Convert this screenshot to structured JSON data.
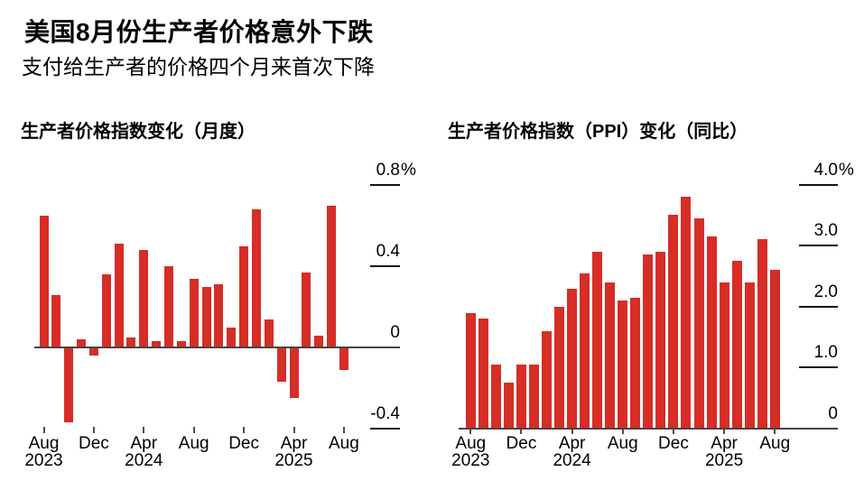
{
  "page": {
    "title": "美国8月份生产者价格意外下跌",
    "subtitle": "支付给生产者的价格四个月来首次下降"
  },
  "colors": {
    "bar_red": "#d62d26",
    "text": "#000000",
    "axis_line": "#454545",
    "tick_dash": "#141414"
  },
  "chart_data": [
    {
      "id": "ppi-mom",
      "type": "bar",
      "title": "生产者价格指数变化（月度）",
      "unit": "%",
      "bar_color": "#d62d26",
      "x": [
        "2023-08",
        "2023-09",
        "2023-10",
        "2023-11",
        "2023-12",
        "2024-01",
        "2024-02",
        "2024-03",
        "2024-04",
        "2024-05",
        "2024-06",
        "2024-07",
        "2024-08",
        "2024-09",
        "2024-10",
        "2024-11",
        "2024-12",
        "2025-01",
        "2025-02",
        "2025-03",
        "2025-04",
        "2025-05",
        "2025-06",
        "2025-07",
        "2025-08"
      ],
      "values": [
        0.65,
        0.26,
        -0.37,
        0.04,
        -0.04,
        0.36,
        0.51,
        0.05,
        0.48,
        0.03,
        0.4,
        0.03,
        0.34,
        0.3,
        0.31,
        0.1,
        0.5,
        0.68,
        0.14,
        -0.17,
        -0.25,
        0.37,
        0.06,
        0.7,
        -0.11
      ],
      "ylim": [
        -0.45,
        0.95
      ],
      "grid": "right-tick-dashes",
      "legend": "none",
      "yticks": [
        {
          "value": 0.8,
          "label": "0.8%"
        },
        {
          "value": 0.4,
          "label": "0.4"
        },
        {
          "value": 0,
          "label": "0"
        },
        {
          "value": -0.4,
          "label": "-0.4"
        }
      ],
      "xticks": [
        {
          "index": 0,
          "month": "Aug",
          "year": "2023"
        },
        {
          "index": 4,
          "month": "Dec",
          "year": ""
        },
        {
          "index": 8,
          "month": "Apr",
          "year": "2024"
        },
        {
          "index": 12,
          "month": "Aug",
          "year": ""
        },
        {
          "index": 16,
          "month": "Dec",
          "year": ""
        },
        {
          "index": 20,
          "month": "Apr",
          "year": "2025"
        },
        {
          "index": 24,
          "month": "Aug",
          "year": ""
        }
      ]
    },
    {
      "id": "ppi-yoy",
      "type": "bar",
      "title": "生产者价格指数（PPI）变化（同比）",
      "unit": "%",
      "bar_color": "#d62d26",
      "x": [
        "2023-08",
        "2023-09",
        "2023-10",
        "2023-11",
        "2023-12",
        "2024-01",
        "2024-02",
        "2024-03",
        "2024-04",
        "2024-05",
        "2024-06",
        "2024-07",
        "2024-08",
        "2024-09",
        "2024-10",
        "2024-11",
        "2024-12",
        "2025-01",
        "2025-02",
        "2025-03",
        "2025-04",
        "2025-05",
        "2025-06",
        "2025-07",
        "2025-08"
      ],
      "values": [
        1.9,
        1.8,
        1.05,
        0.75,
        1.05,
        1.05,
        1.6,
        2.0,
        2.3,
        2.55,
        2.9,
        2.4,
        2.1,
        2.15,
        2.85,
        2.9,
        3.5,
        3.8,
        3.45,
        3.15,
        2.4,
        2.75,
        2.4,
        3.1,
        2.6
      ],
      "ylim": [
        0,
        4.0
      ],
      "grid": "right-tick-dashes",
      "legend": "none",
      "yticks": [
        {
          "value": 4.0,
          "label": "4.0%"
        },
        {
          "value": 3.0,
          "label": "3.0"
        },
        {
          "value": 2.0,
          "label": "2.0"
        },
        {
          "value": 1.0,
          "label": "1.0"
        },
        {
          "value": 0,
          "label": "0"
        }
      ],
      "xticks": [
        {
          "index": 0,
          "month": "Aug",
          "year": "2023"
        },
        {
          "index": 4,
          "month": "Dec",
          "year": ""
        },
        {
          "index": 8,
          "month": "Apr",
          "year": "2024"
        },
        {
          "index": 12,
          "month": "Aug",
          "year": ""
        },
        {
          "index": 16,
          "month": "Dec",
          "year": ""
        },
        {
          "index": 20,
          "month": "Apr",
          "year": "2025"
        },
        {
          "index": 24,
          "month": "Aug",
          "year": ""
        }
      ]
    }
  ]
}
